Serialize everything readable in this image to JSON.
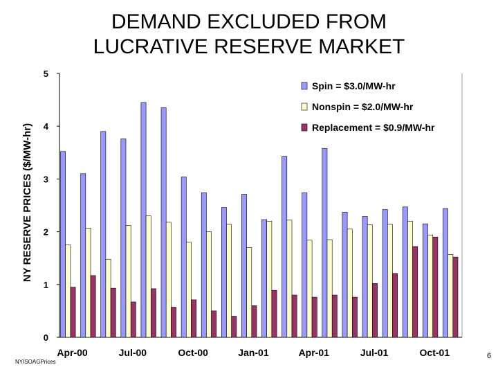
{
  "slide": {
    "title_line1": "DEMAND  EXCLUDED FROM",
    "title_line2": "LUCRATIVE RESERVE MARKET",
    "footer_note": "NYISOAGPrices",
    "page_number": "6"
  },
  "chart_data": {
    "type": "bar",
    "ylabel": "NY RESERVE PRICES ($/MW-hr)",
    "ylim": [
      0,
      5
    ],
    "yticks": [
      0,
      1,
      2,
      3,
      4,
      5
    ],
    "x_tick_labels": [
      "Apr-00",
      "Jul-00",
      "Oct-00",
      "Jan-01",
      "Apr-01",
      "Jul-01",
      "Oct-01"
    ],
    "x_tick_label_every": 3,
    "months": [
      "Apr-00",
      "May-00",
      "Jun-00",
      "Jul-00",
      "Aug-00",
      "Sep-00",
      "Oct-00",
      "Nov-00",
      "Dec-00",
      "Jan-01",
      "Feb-01",
      "Mar-01",
      "Apr-01",
      "May-01",
      "Jun-01",
      "Jul-01",
      "Aug-01",
      "Sep-01",
      "Oct-01",
      "Nov-01"
    ],
    "legend_position": "top-right",
    "grid": false,
    "series": [
      {
        "name": "Spin = $3.0/MW-hr",
        "color": "#9999ff",
        "values": [
          3.52,
          3.1,
          3.9,
          3.76,
          4.45,
          4.35,
          3.04,
          2.74,
          2.46,
          2.71,
          2.23,
          3.43,
          2.74,
          3.58,
          2.37,
          2.29,
          2.42,
          2.47,
          2.15,
          2.44
        ]
      },
      {
        "name": "Nonspin = $2.0/MW-hr",
        "color": "#ffffcc",
        "values": [
          1.75,
          2.07,
          1.48,
          2.12,
          2.3,
          2.18,
          1.8,
          2.0,
          2.14,
          1.7,
          2.2,
          2.22,
          1.84,
          1.85,
          2.05,
          2.13,
          2.14,
          2.2,
          1.94,
          1.57
        ]
      },
      {
        "name": "Replacement = $0.9/MW-hr",
        "color": "#993366",
        "values": [
          0.95,
          1.17,
          0.93,
          0.67,
          0.92,
          0.57,
          0.71,
          0.5,
          0.4,
          0.6,
          0.89,
          0.8,
          0.76,
          0.8,
          0.76,
          1.02,
          1.21,
          1.72,
          1.9,
          1.52
        ]
      }
    ]
  }
}
